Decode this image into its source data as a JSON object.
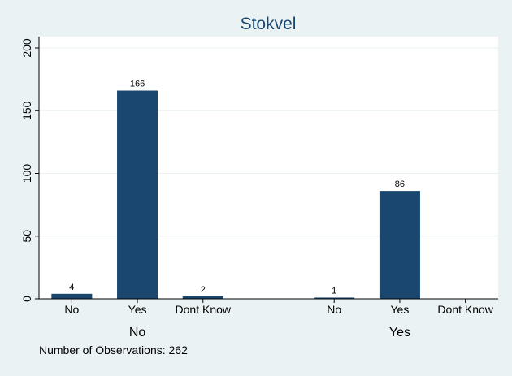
{
  "chart_data": {
    "type": "bar",
    "title": "Stokvel",
    "xlabel": "",
    "ylabel": "",
    "ylim": [
      0,
      200
    ],
    "yticks": [
      0,
      50,
      100,
      150,
      200
    ],
    "grid": true,
    "groups": [
      {
        "label": "No",
        "categories": [
          "No",
          "Yes",
          "Dont Know"
        ],
        "values": [
          4,
          166,
          2
        ]
      },
      {
        "label": "Yes",
        "categories": [
          "No",
          "Yes",
          "Dont Know"
        ],
        "values": [
          1,
          86,
          null
        ]
      }
    ],
    "note": "Number of Observations: 262",
    "colors": {
      "bar": "#1a476f",
      "plot_bg": "#ffffff",
      "outer_bg": "#eaf2f3",
      "grid": "#eaf2f3",
      "title": "#1a476f"
    }
  }
}
